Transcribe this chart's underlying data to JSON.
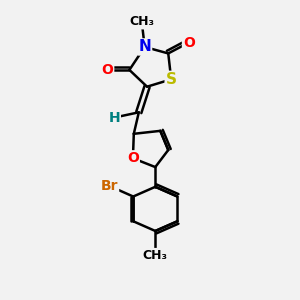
{
  "bg_color": "#f2f2f2",
  "bond_color": "#000000",
  "bond_width": 1.8,
  "dbo": 0.12,
  "atom_colors": {
    "N": "#0000ee",
    "O": "#ff0000",
    "S": "#bbbb00",
    "Br": "#cc6600",
    "H": "#008080",
    "C": "#000000"
  },
  "font_size": 10
}
